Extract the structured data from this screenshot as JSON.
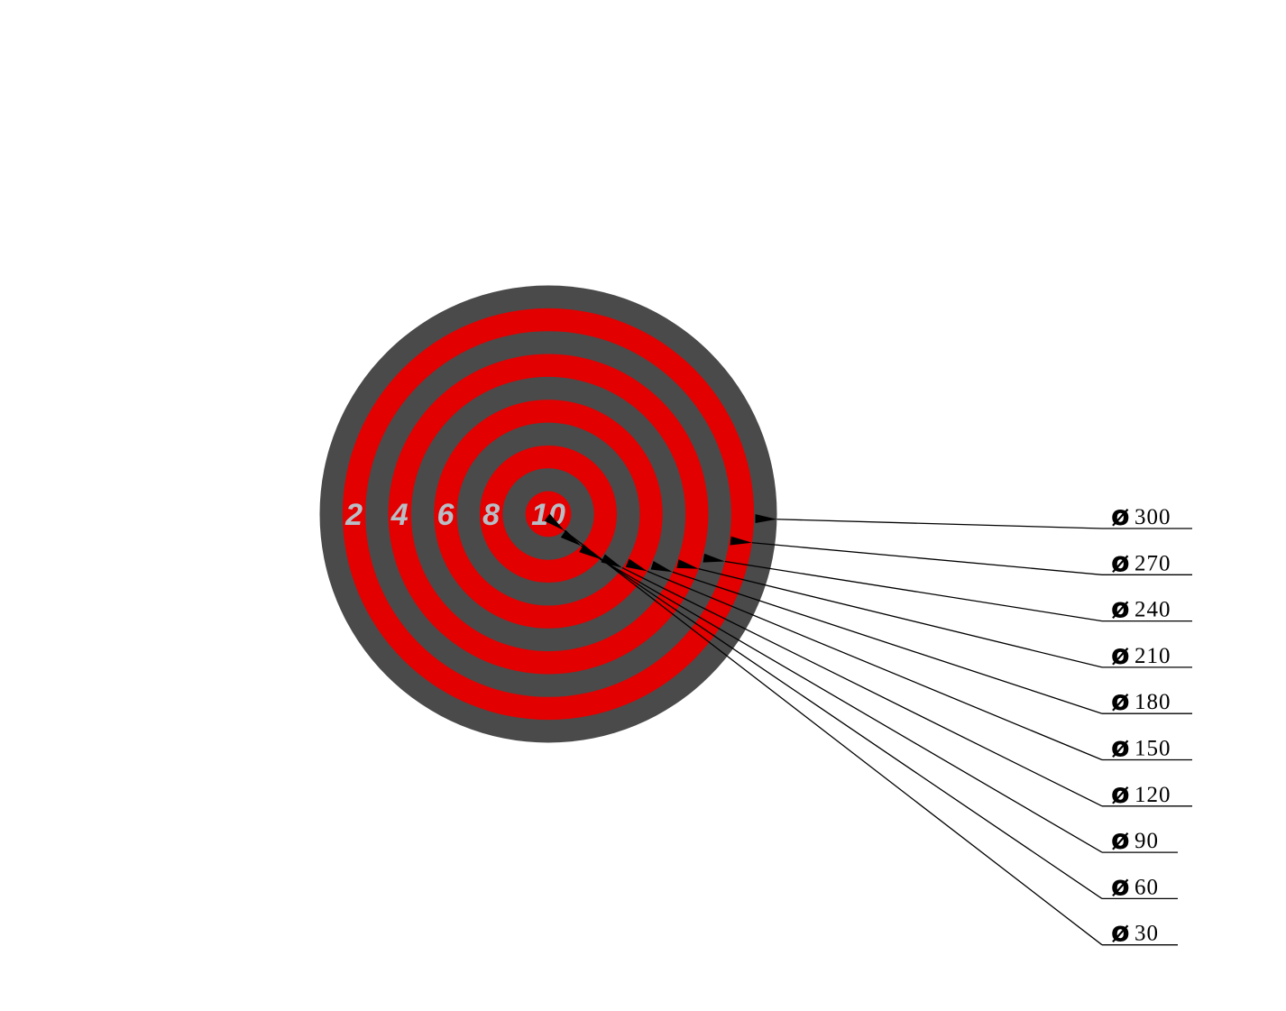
{
  "colors": {
    "dark_ring": "#4a4a4a",
    "red_ring": "#e20000",
    "score_text": "#b8bec6",
    "leader_line": "#000000",
    "background": "#ffffff"
  },
  "diameter_symbol": "ø",
  "rings": [
    {
      "diameter_label": "300",
      "diameter": 300,
      "color": "dark"
    },
    {
      "diameter_label": "270",
      "diameter": 270,
      "color": "red"
    },
    {
      "diameter_label": "240",
      "diameter": 240,
      "color": "dark"
    },
    {
      "diameter_label": "210",
      "diameter": 210,
      "color": "red"
    },
    {
      "diameter_label": "180",
      "diameter": 180,
      "color": "dark"
    },
    {
      "diameter_label": "150",
      "diameter": 150,
      "color": "red"
    },
    {
      "diameter_label": "120",
      "diameter": 120,
      "color": "dark"
    },
    {
      "diameter_label": "90",
      "diameter": 90,
      "color": "red"
    },
    {
      "diameter_label": "60",
      "diameter": 60,
      "color": "dark"
    },
    {
      "diameter_label": "30",
      "diameter": 30,
      "color": "red"
    }
  ],
  "score_labels": [
    "2",
    "4",
    "6",
    "8",
    "10"
  ]
}
